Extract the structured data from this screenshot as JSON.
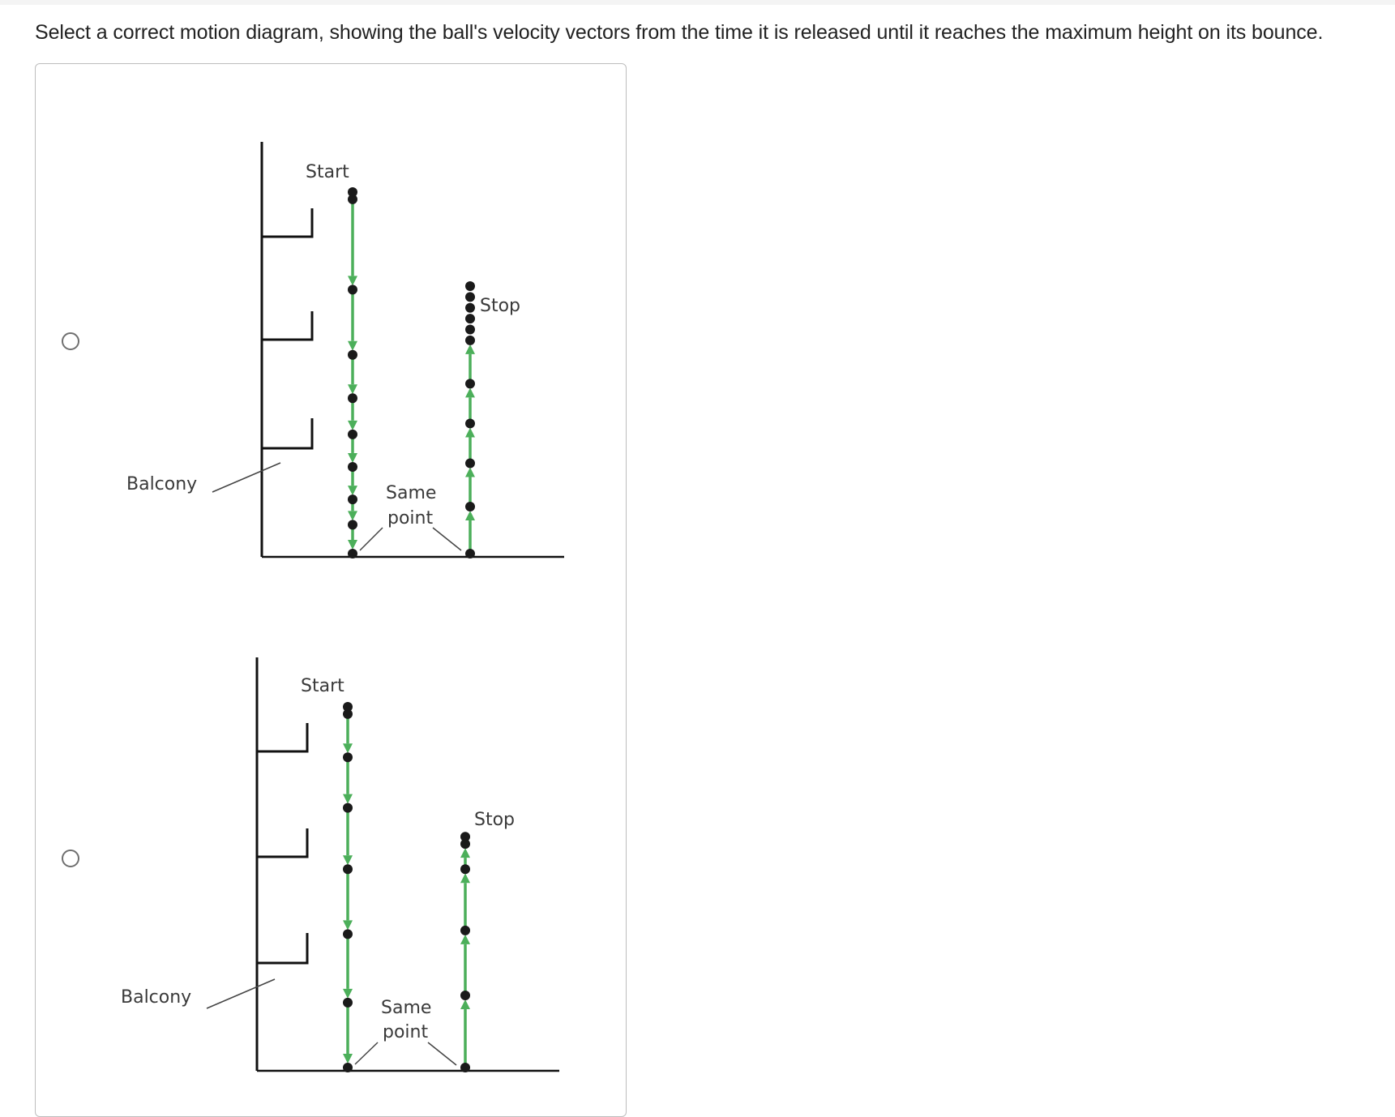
{
  "question": {
    "text": "Select a correct motion diagram, showing the ball's velocity vectors from the time it is released until it reaches the maximum height on its bounce."
  },
  "colors": {
    "arrow": "#4caf5a",
    "dot": "#1a1a1a",
    "line": "#111111",
    "border": "#bdbdbd"
  },
  "options": [
    {
      "id": "option-1",
      "labels": {
        "start": "Start",
        "stop": "Stop",
        "balcony": "Balcony",
        "same_line1": "Same",
        "same_line2": "point"
      },
      "fall_dots": [
        0.0,
        0.02,
        0.27,
        0.45,
        0.57,
        0.67,
        0.76,
        0.85,
        0.92,
        1.0
      ],
      "rise_dots": [
        0.0,
        0.13,
        0.25,
        0.36,
        0.47,
        0.59,
        0.62,
        0.65,
        0.68,
        0.71,
        0.74
      ],
      "rise_top": 0.74
    },
    {
      "id": "option-2",
      "labels": {
        "start": "Start",
        "stop": "Stop",
        "balcony": "Balcony",
        "same_line1": "Same",
        "same_line2": "point"
      },
      "fall_dots": [
        0.0,
        0.02,
        0.14,
        0.28,
        0.45,
        0.63,
        0.82,
        1.0
      ],
      "rise_dots": [
        0.0,
        0.2,
        0.38,
        0.55,
        0.62,
        0.64
      ],
      "rise_top": 0.64
    }
  ]
}
